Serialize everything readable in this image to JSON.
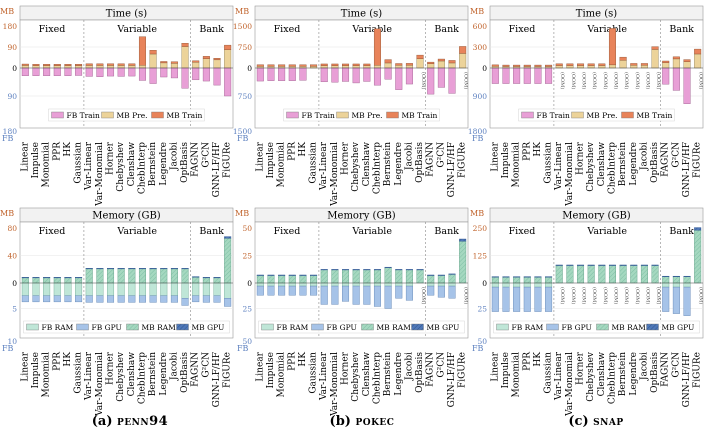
{
  "methods": [
    "Linear",
    "Impulse",
    "Monomial",
    "PPR",
    "HK",
    "Gaussian",
    "Var-Linear",
    "Var-Monomial",
    "Horner",
    "Chebyshev",
    "Clenshaw",
    "ChebInterp",
    "Bernstein",
    "Legendre",
    "Jacobi",
    "OptBasis",
    "FAGNN",
    "G²CN",
    "GNN-LF/HF",
    "FiGURe"
  ],
  "groups": [
    "Fixed",
    "Variable",
    "Bank"
  ],
  "group_split": [
    6,
    16
  ],
  "colors": {
    "fb_train": "#e89fd6",
    "mb_pre": "#ecd39a",
    "mb_train": "#e8835a",
    "fb_ram": "#bfe6d7",
    "fb_gpu": "#a6c3e8",
    "mb_ram": "#a5d8c0",
    "mb_gpu": "#4f78b8",
    "mb_axis": "#c0622a",
    "fb_axis": "#5b7fbf"
  },
  "side_labels": {
    "mb": "MB",
    "fb": "FB"
  },
  "oom_label": "(OOM)",
  "time_title": "Time (s)",
  "memory_title": "Memory (GB)",
  "time_legend": [
    "FB Train",
    "MB Pre.",
    "MB Train"
  ],
  "memory_legend": [
    "FB RAM",
    "FB GPU",
    "MB RAM",
    "MB GPU"
  ],
  "captions": [
    {
      "label": "(a)",
      "name": "penn94"
    },
    {
      "label": "(b)",
      "name": "pokec"
    },
    {
      "label": "(c)",
      "name": "snap"
    }
  ],
  "chart_data": [
    {
      "type": "bar",
      "metric": "time",
      "dataset": "penn94",
      "title": "Time (s)",
      "mb_ylim": [
        0,
        180
      ],
      "fb_ylim": [
        0,
        180
      ],
      "mb_ticks": [
        180,
        90,
        0
      ],
      "fb_ticks": [
        90,
        180
      ],
      "series": [
        {
          "name": "FB Train",
          "values": [
            25,
            25,
            25,
            25,
            25,
            24,
            27,
            28,
            26,
            27,
            26,
            40,
            50,
            29,
            32,
            65,
            38,
            42,
            55,
            90
          ]
        },
        {
          "name": "MB Pre.",
          "values": [
            11,
            10,
            10,
            10,
            10,
            10,
            11,
            11,
            11,
            11,
            11,
            12,
            60,
            22,
            20,
            92,
            25,
            40,
            35,
            78
          ]
        },
        {
          "name": "MB Train",
          "values": [
            6,
            6,
            6,
            6,
            6,
            6,
            7,
            7,
            7,
            7,
            7,
            122,
            16,
            6,
            7,
            14,
            6,
            10,
            7,
            20
          ]
        }
      ]
    },
    {
      "type": "bar",
      "metric": "time",
      "dataset": "pokec",
      "title": "Time (s)",
      "mb_ylim": [
        0,
        1500
      ],
      "fb_ylim": [
        0,
        1500
      ],
      "mb_ticks": [
        1500,
        750,
        0
      ],
      "fb_ticks": [
        750,
        1500
      ],
      "oom_fb": [
        15,
        19
      ],
      "series": [
        {
          "name": "FB Train",
          "values": [
            350,
            340,
            340,
            340,
            330,
            null,
            370,
            380,
            360,
            400,
            360,
            460,
            300,
            580,
            430,
            null,
            700,
            520,
            680,
            null
          ]
        },
        {
          "name": "MB Pre.",
          "values": [
            60,
            60,
            60,
            60,
            60,
            60,
            80,
            80,
            80,
            80,
            80,
            100,
            180,
            100,
            100,
            330,
            150,
            250,
            180,
            520
          ]
        },
        {
          "name": "MB Train",
          "values": [
            55,
            55,
            55,
            55,
            55,
            55,
            65,
            65,
            65,
            65,
            65,
            1300,
            120,
            60,
            65,
            130,
            60,
            70,
            90,
            250
          ]
        }
      ]
    },
    {
      "type": "bar",
      "metric": "time",
      "dataset": "snap",
      "title": "Time (s)",
      "mb_ylim": [
        0,
        600
      ],
      "mb_ticks": [
        600,
        300,
        0
      ],
      "fb_ylim": [
        0,
        1800
      ],
      "fb_ticks": [
        900,
        1800
      ],
      "oom_fb": [
        6,
        7,
        8,
        9,
        10,
        11,
        12,
        13,
        14,
        15,
        19
      ],
      "series": [
        {
          "name": "FB Train",
          "values": [
            500,
            500,
            500,
            500,
            500,
            500,
            null,
            null,
            null,
            null,
            null,
            null,
            null,
            null,
            null,
            null,
            520,
            720,
            1150,
            null
          ]
        },
        {
          "name": "MB Pre.",
          "values": [
            25,
            22,
            22,
            22,
            22,
            22,
            35,
            35,
            35,
            35,
            35,
            45,
            110,
            40,
            40,
            265,
            75,
            130,
            90,
            200
          ]
        },
        {
          "name": "MB Train",
          "values": [
            20,
            20,
            20,
            20,
            20,
            20,
            25,
            25,
            25,
            25,
            25,
            520,
            45,
            25,
            25,
            40,
            25,
            30,
            30,
            70
          ]
        }
      ]
    },
    {
      "type": "bar",
      "metric": "memory",
      "dataset": "penn94",
      "title": "Memory (GB)",
      "mb_ylim": [
        0,
        80
      ],
      "mb_ticks": [
        80,
        40,
        0
      ],
      "fb_ylim": [
        0,
        10
      ],
      "fb_ticks": [
        5,
        10
      ],
      "series": [
        {
          "name": "FB RAM",
          "values": [
            2.5,
            2.5,
            2.5,
            2.5,
            2.5,
            2.5,
            2.5,
            2.5,
            2.5,
            2.5,
            2.5,
            2.5,
            2.5,
            2.5,
            2.5,
            3.0,
            2.5,
            2.5,
            2.5,
            3.0
          ]
        },
        {
          "name": "FB GPU",
          "values": [
            1.2,
            1.2,
            1.2,
            1.2,
            1.2,
            1.2,
            1.3,
            1.3,
            1.3,
            1.3,
            1.3,
            1.3,
            1.3,
            1.3,
            1.3,
            1.4,
            1.2,
            1.3,
            1.3,
            1.6
          ]
        },
        {
          "name": "MB RAM",
          "values": [
            8,
            8,
            8,
            8,
            8,
            8,
            21,
            21,
            21,
            21,
            21,
            21,
            21,
            21,
            21,
            21,
            9,
            8,
            8,
            65
          ]
        },
        {
          "name": "MB GPU",
          "values": [
            0.3,
            0.3,
            0.3,
            0.3,
            0.3,
            0.3,
            0.4,
            0.4,
            0.4,
            0.4,
            0.4,
            0.4,
            0.4,
            0.4,
            0.4,
            0.4,
            0.3,
            0.3,
            0.3,
            2.5
          ]
        }
      ]
    },
    {
      "type": "bar",
      "metric": "memory",
      "dataset": "pokec",
      "title": "Memory (GB)",
      "mb_ylim": [
        0,
        50
      ],
      "mb_ticks": [
        50,
        25,
        0
      ],
      "fb_ylim": [
        0,
        50
      ],
      "fb_ticks": [
        25,
        50
      ],
      "oom_fb": [
        15,
        19
      ],
      "series": [
        {
          "name": "FB RAM",
          "values": [
            3,
            3,
            3,
            3,
            3,
            3,
            3,
            3,
            3,
            3,
            3,
            3,
            3,
            3,
            3,
            null,
            3,
            3,
            3,
            null
          ]
        },
        {
          "name": "FB GPU",
          "values": [
            9,
            9,
            9,
            9,
            9,
            9,
            18,
            18,
            15,
            18,
            18,
            20,
            22,
            12,
            14,
            null,
            9,
            11,
            12,
            null
          ]
        },
        {
          "name": "MB RAM",
          "values": [
            7,
            7,
            7,
            7,
            7,
            7,
            12,
            12,
            12,
            12,
            12,
            12,
            14,
            12,
            12,
            12,
            7,
            7,
            8,
            38
          ]
        },
        {
          "name": "MB GPU",
          "values": [
            0.3,
            0.3,
            0.3,
            0.3,
            0.3,
            0.3,
            0.4,
            0.4,
            0.4,
            0.4,
            0.4,
            0.4,
            0.4,
            0.4,
            0.4,
            0.4,
            0.3,
            0.3,
            0.3,
            2
          ]
        }
      ]
    },
    {
      "type": "bar",
      "metric": "memory",
      "dataset": "snap",
      "title": "Memory (GB)",
      "mb_ylim": [
        0,
        250
      ],
      "mb_ticks": [
        250,
        125,
        0
      ],
      "fb_ylim": [
        0,
        50
      ],
      "fb_ticks": [
        25,
        50
      ],
      "oom_fb": [
        6,
        7,
        8,
        9,
        10,
        11,
        12,
        13,
        14,
        15,
        19
      ],
      "series": [
        {
          "name": "FB RAM",
          "values": [
            4,
            4,
            4,
            4,
            4,
            4,
            null,
            null,
            null,
            null,
            null,
            null,
            null,
            null,
            null,
            null,
            4,
            4,
            4,
            null
          ]
        },
        {
          "name": "FB GPU",
          "values": [
            24,
            24,
            24,
            24,
            24,
            24,
            null,
            null,
            null,
            null,
            null,
            null,
            null,
            null,
            null,
            null,
            24,
            26,
            28,
            null
          ]
        },
        {
          "name": "MB RAM",
          "values": [
            28,
            28,
            28,
            28,
            28,
            28,
            80,
            80,
            80,
            80,
            80,
            80,
            80,
            80,
            80,
            80,
            30,
            30,
            30,
            240
          ]
        },
        {
          "name": "MB GPU",
          "values": [
            1,
            1,
            1,
            1,
            1,
            1,
            2,
            2,
            2,
            2,
            2,
            2,
            2,
            2,
            2,
            2,
            1,
            1,
            1,
            12
          ]
        }
      ]
    }
  ]
}
